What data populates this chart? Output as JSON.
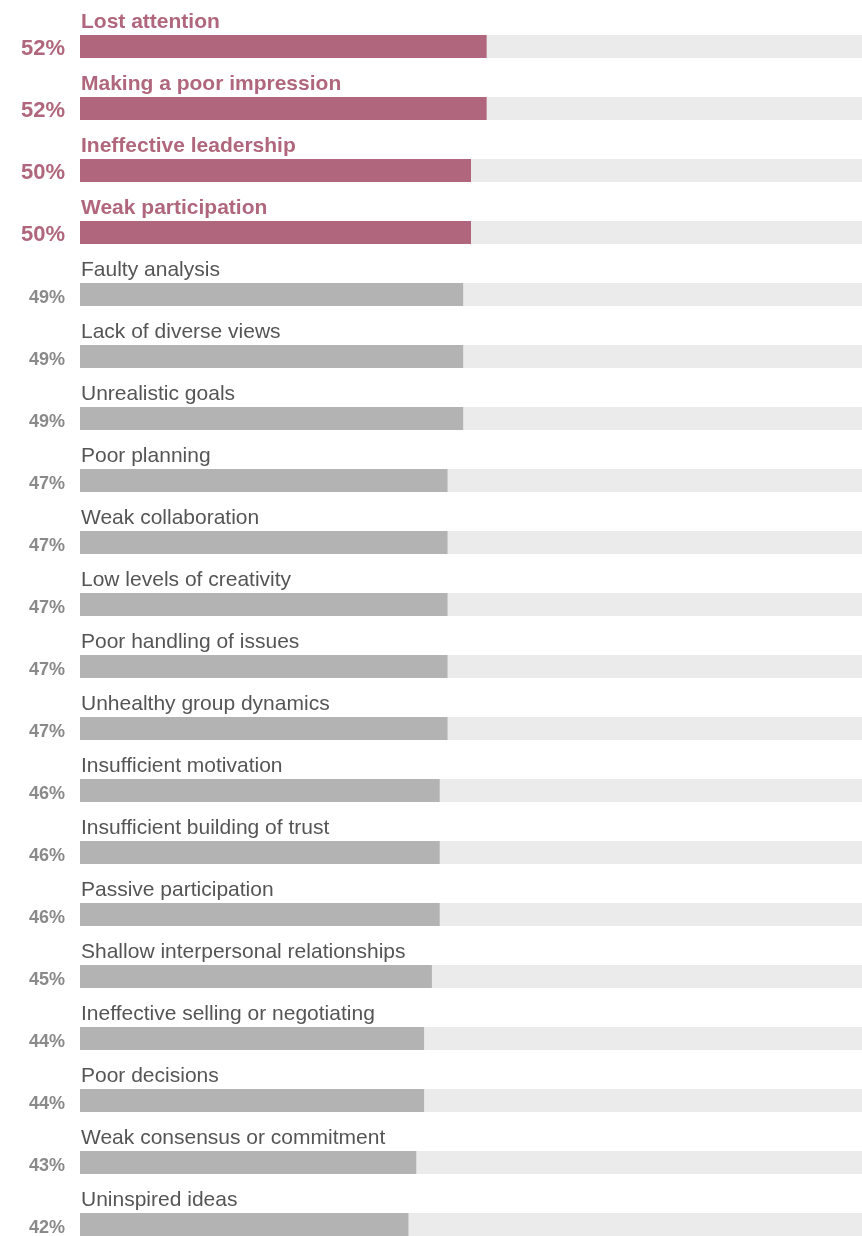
{
  "chart_data": {
    "type": "bar",
    "orientation": "horizontal",
    "xlim": [
      0,
      100
    ],
    "categories": [
      "Lost attention",
      "Making a poor impression",
      "Ineffective leadership",
      "Weak participation",
      "Faulty analysis",
      "Lack of diverse views",
      "Unrealistic goals",
      "Poor planning",
      "Weak collaboration",
      "Low levels of creativity",
      "Poor handling of issues",
      "Unhealthy group dynamics",
      "Insufficient motivation",
      "Insufficient building of trust",
      "Passive participation",
      "Shallow interpersonal relationships",
      "Ineffective selling or negotiating",
      "Poor decisions",
      "Weak consensus or commitment",
      "Uninspired ideas"
    ],
    "values": [
      52,
      52,
      50,
      50,
      49,
      49,
      49,
      47,
      47,
      47,
      47,
      47,
      46,
      46,
      46,
      45,
      44,
      44,
      43,
      42
    ],
    "value_labels": [
      "52%",
      "52%",
      "50%",
      "50%",
      "49%",
      "49%",
      "49%",
      "47%",
      "47%",
      "47%",
      "47%",
      "47%",
      "46%",
      "46%",
      "46%",
      "45%",
      "44%",
      "44%",
      "43%",
      "42%"
    ],
    "colors": [
      "#b0667c",
      "#b0667c",
      "#b0667c",
      "#b0667c",
      "#b3b3b3",
      "#b3b3b3",
      "#b3b3b3",
      "#b3b3b3",
      "#b3b3b3",
      "#b3b3b3",
      "#b3b3b3",
      "#b3b3b3",
      "#b3b3b3",
      "#b3b3b3",
      "#b3b3b3",
      "#b3b3b3",
      "#b3b3b3",
      "#b3b3b3",
      "#b3b3b3",
      "#b3b3b3"
    ]
  }
}
